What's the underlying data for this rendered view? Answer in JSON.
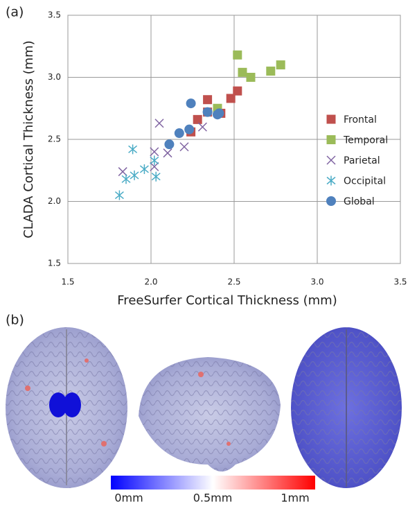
{
  "panel_a_label": "(a)",
  "panel_b_label": "(b)",
  "colorbar_labels": [
    "0mm",
    "0.5mm",
    "1mm"
  ],
  "chart_data": {
    "type": "scatter",
    "xlabel": "FreeSurfer Cortical Thickness (mm)",
    "ylabel": "CLADA Cortical Thickness (mm)",
    "xlim": [
      1.5,
      3.5
    ],
    "ylim": [
      1.5,
      3.5
    ],
    "xticks": [
      1.5,
      {
        "value": 2,
        "label": "2.0"
      },
      2.5,
      {
        "value": 3,
        "label": "3.0"
      },
      3.5
    ],
    "yticks": [
      1.5,
      {
        "value": 2,
        "label": "2.0"
      },
      2.5,
      {
        "value": 3,
        "label": "3.0"
      },
      3.5
    ],
    "grid": true,
    "legend": "center right",
    "series": [
      {
        "name": "Frontal",
        "color": "#c0504d",
        "marker": "square",
        "x": [
          2.34,
          2.52,
          2.48,
          2.28,
          2.34,
          2.24,
          2.42
        ],
        "values": [
          2.82,
          2.89,
          2.83,
          2.66,
          2.72,
          2.56,
          2.71
        ]
      },
      {
        "name": "Temporal",
        "color": "#9bbb59",
        "marker": "square",
        "x": [
          2.52,
          2.55,
          2.6,
          2.72,
          2.78,
          2.4
        ],
        "values": [
          3.18,
          3.04,
          3.0,
          3.05,
          3.1,
          2.75
        ]
      },
      {
        "name": "Parietal",
        "color": "#8064a2",
        "marker": "x",
        "x": [
          1.83,
          2.05,
          2.02,
          2.1,
          2.2,
          2.31,
          2.02
        ],
        "values": [
          2.24,
          2.63,
          2.4,
          2.39,
          2.44,
          2.6,
          2.28
        ]
      },
      {
        "name": "Occipital",
        "color": "#4bacc6",
        "marker": "asterisk",
        "x": [
          1.81,
          1.85,
          1.89,
          1.9,
          1.96,
          2.02,
          2.03
        ],
        "values": [
          2.05,
          2.18,
          2.42,
          2.21,
          2.26,
          2.33,
          2.2
        ]
      },
      {
        "name": "Global",
        "color": "#4f81bd",
        "marker": "circle",
        "x": [
          2.24,
          2.11,
          2.17,
          2.23,
          2.34,
          2.41,
          2.4
        ],
        "values": [
          2.79,
          2.46,
          2.55,
          2.58,
          2.72,
          2.71,
          2.7
        ]
      }
    ]
  }
}
